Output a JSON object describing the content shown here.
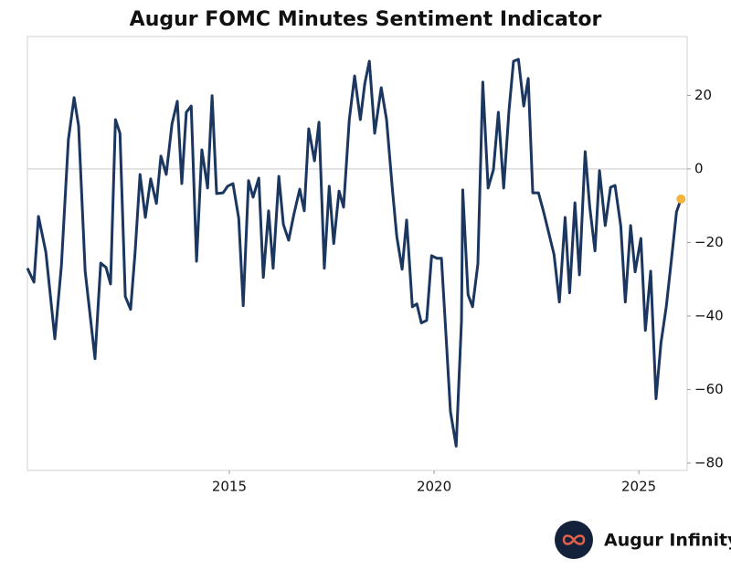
{
  "chart_data": {
    "type": "line",
    "title": "Augur FOMC Minutes Sentiment Indicator",
    "x": [
      2010.07,
      2010.23,
      2010.34,
      2010.52,
      2010.74,
      2010.9,
      2011.07,
      2011.21,
      2011.32,
      2011.48,
      2011.72,
      2011.86,
      2011.99,
      2012.1,
      2012.22,
      2012.33,
      2012.46,
      2012.59,
      2012.7,
      2012.82,
      2012.95,
      2013.08,
      2013.22,
      2013.33,
      2013.46,
      2013.6,
      2013.73,
      2013.84,
      2013.95,
      2014.07,
      2014.2,
      2014.33,
      2014.47,
      2014.58,
      2014.69,
      2014.85,
      2014.96,
      2015.09,
      2015.23,
      2015.34,
      2015.47,
      2015.58,
      2015.72,
      2015.83,
      2015.96,
      2016.07,
      2016.21,
      2016.32,
      2016.45,
      2016.57,
      2016.72,
      2016.83,
      2016.94,
      2017.08,
      2017.19,
      2017.32,
      2017.44,
      2017.55,
      2017.68,
      2017.79,
      2017.93,
      2018.06,
      2018.2,
      2018.31,
      2018.42,
      2018.55,
      2018.71,
      2018.84,
      2018.98,
      2019.09,
      2019.22,
      2019.33,
      2019.47,
      2019.58,
      2019.69,
      2019.82,
      2019.94,
      2020.07,
      2020.18,
      2020.29,
      2020.4,
      2020.54,
      2020.67,
      2020.7,
      2020.83,
      2020.94,
      2021.07,
      2021.19,
      2021.32,
      2021.45,
      2021.57,
      2021.7,
      2021.83,
      2021.94,
      2022.06,
      2022.19,
      2022.3,
      2022.41,
      2022.55,
      2022.68,
      2022.93,
      2023.06,
      2023.2,
      2023.31,
      2023.44,
      2023.55,
      2023.69,
      2023.8,
      2023.93,
      2024.04,
      2024.18,
      2024.31,
      2024.42,
      2024.56,
      2024.67,
      2024.8,
      2024.91,
      2025.05,
      2025.16,
      2025.29,
      2025.42,
      2025.54,
      2025.67,
      2025.8,
      2025.92,
      2026.03
    ],
    "values": [
      -27.0,
      -30.8,
      -12.9,
      -22.6,
      -46.2,
      -26.3,
      7.9,
      19.4,
      11.7,
      -27.8,
      -51.6,
      -25.6,
      -26.8,
      -31.3,
      13.4,
      9.7,
      -34.7,
      -38.2,
      -22.6,
      -1.5,
      -13.2,
      -2.7,
      -9.4,
      3.5,
      -1.5,
      12.2,
      18.4,
      -4.0,
      15.4,
      17.1,
      -25.1,
      5.2,
      -5.2,
      19.9,
      -6.7,
      -6.5,
      -4.7,
      -4.0,
      -13.4,
      -37.2,
      -3.2,
      -7.7,
      -2.5,
      -29.5,
      -11.4,
      -27.0,
      -2.0,
      -15.1,
      -19.4,
      -12.7,
      -5.5,
      -11.4,
      10.9,
      2.2,
      12.7,
      -27.0,
      -4.7,
      -20.3,
      -6.0,
      -10.4,
      13.4,
      25.3,
      13.4,
      23.3,
      29.3,
      9.7,
      22.1,
      13.4,
      -5.2,
      -18.4,
      -27.3,
      -13.9,
      -37.5,
      -36.7,
      -41.9,
      -41.2,
      -23.6,
      -24.3,
      -24.3,
      -44.9,
      -66.0,
      -75.4,
      -41.2,
      -5.7,
      -34.2,
      -37.5,
      -25.8,
      23.6,
      -5.2,
      -0.2,
      15.4,
      -5.2,
      15.9,
      29.3,
      29.8,
      17.1,
      24.6,
      -6.5,
      -6.5,
      -11.9,
      -23.3,
      -36.2,
      -13.2,
      -33.7,
      -9.2,
      -28.8,
      4.7,
      -10.2,
      -22.3,
      -0.5,
      -15.4,
      -5.0,
      -4.5,
      -15.6,
      -36.2,
      -15.4,
      -28.0,
      -18.9,
      -43.9,
      -27.8,
      -62.5,
      -47.4,
      -37.5,
      -24.3,
      -11.7,
      -8.2
    ],
    "color": "#1b365f",
    "highlight_color": "#f2b63c",
    "xlim": [
      2010.07,
      2026.18
    ],
    "xticks": [
      2015,
      2020,
      2025
    ],
    "ylim": [
      -82,
      36
    ],
    "yticks": [
      20,
      0,
      {
        "value": -20,
        "label": "−20"
      },
      {
        "value": -40,
        "label": "−40"
      },
      {
        "value": -60,
        "label": "−60"
      },
      {
        "value": -80,
        "label": "−80"
      }
    ],
    "reference_line": 0
  },
  "brand": "Augur Infinity"
}
